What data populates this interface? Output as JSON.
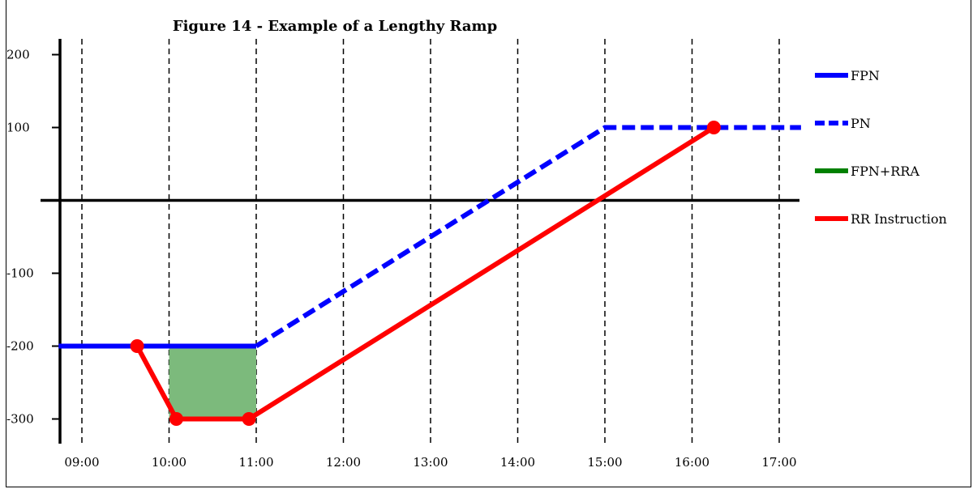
{
  "chart_data": {
    "type": "line",
    "title": "Figure 14 - Example of a Lengthy Ramp",
    "xlabel": "",
    "ylabel": "",
    "x_ticks": [
      "09:00",
      "10:00",
      "11:00",
      "12:00",
      "13:00",
      "14:00",
      "15:00",
      "16:00",
      "17:00"
    ],
    "y_ticks": [
      200,
      100,
      -100,
      -200,
      -300
    ],
    "ylim": [
      -330,
      220
    ],
    "grid": "vertical dashed",
    "legend_position": "right",
    "series": [
      {
        "name": "FPN",
        "style": "solid",
        "color": "#0000ff",
        "points": [
          [
            "08:44",
            -200
          ],
          [
            "11:00",
            -200
          ]
        ]
      },
      {
        "name": "PN",
        "style": "dashed",
        "color": "#0000ff",
        "points": [
          [
            "11:00",
            -200
          ],
          [
            "15:00",
            100
          ],
          [
            "17:15",
            100
          ]
        ]
      },
      {
        "name": "FPN+RRA",
        "style": "area",
        "color": "#008000",
        "fill": "#7cba7c",
        "points": [
          [
            "10:00",
            -200
          ],
          [
            "11:00",
            -200
          ],
          [
            "11:00",
            -300
          ],
          [
            "10:00",
            -300
          ]
        ]
      },
      {
        "name": "RR Instruction",
        "style": "solid",
        "color": "#ff0000",
        "points": [
          [
            "09:38",
            -200
          ],
          [
            "10:05",
            -300
          ],
          [
            "10:55",
            -300
          ],
          [
            "16:15",
            100
          ]
        ],
        "markers": [
          [
            "09:38",
            -200
          ],
          [
            "10:05",
            -300
          ],
          [
            "10:55",
            -300
          ],
          [
            "16:15",
            100
          ]
        ]
      }
    ]
  }
}
